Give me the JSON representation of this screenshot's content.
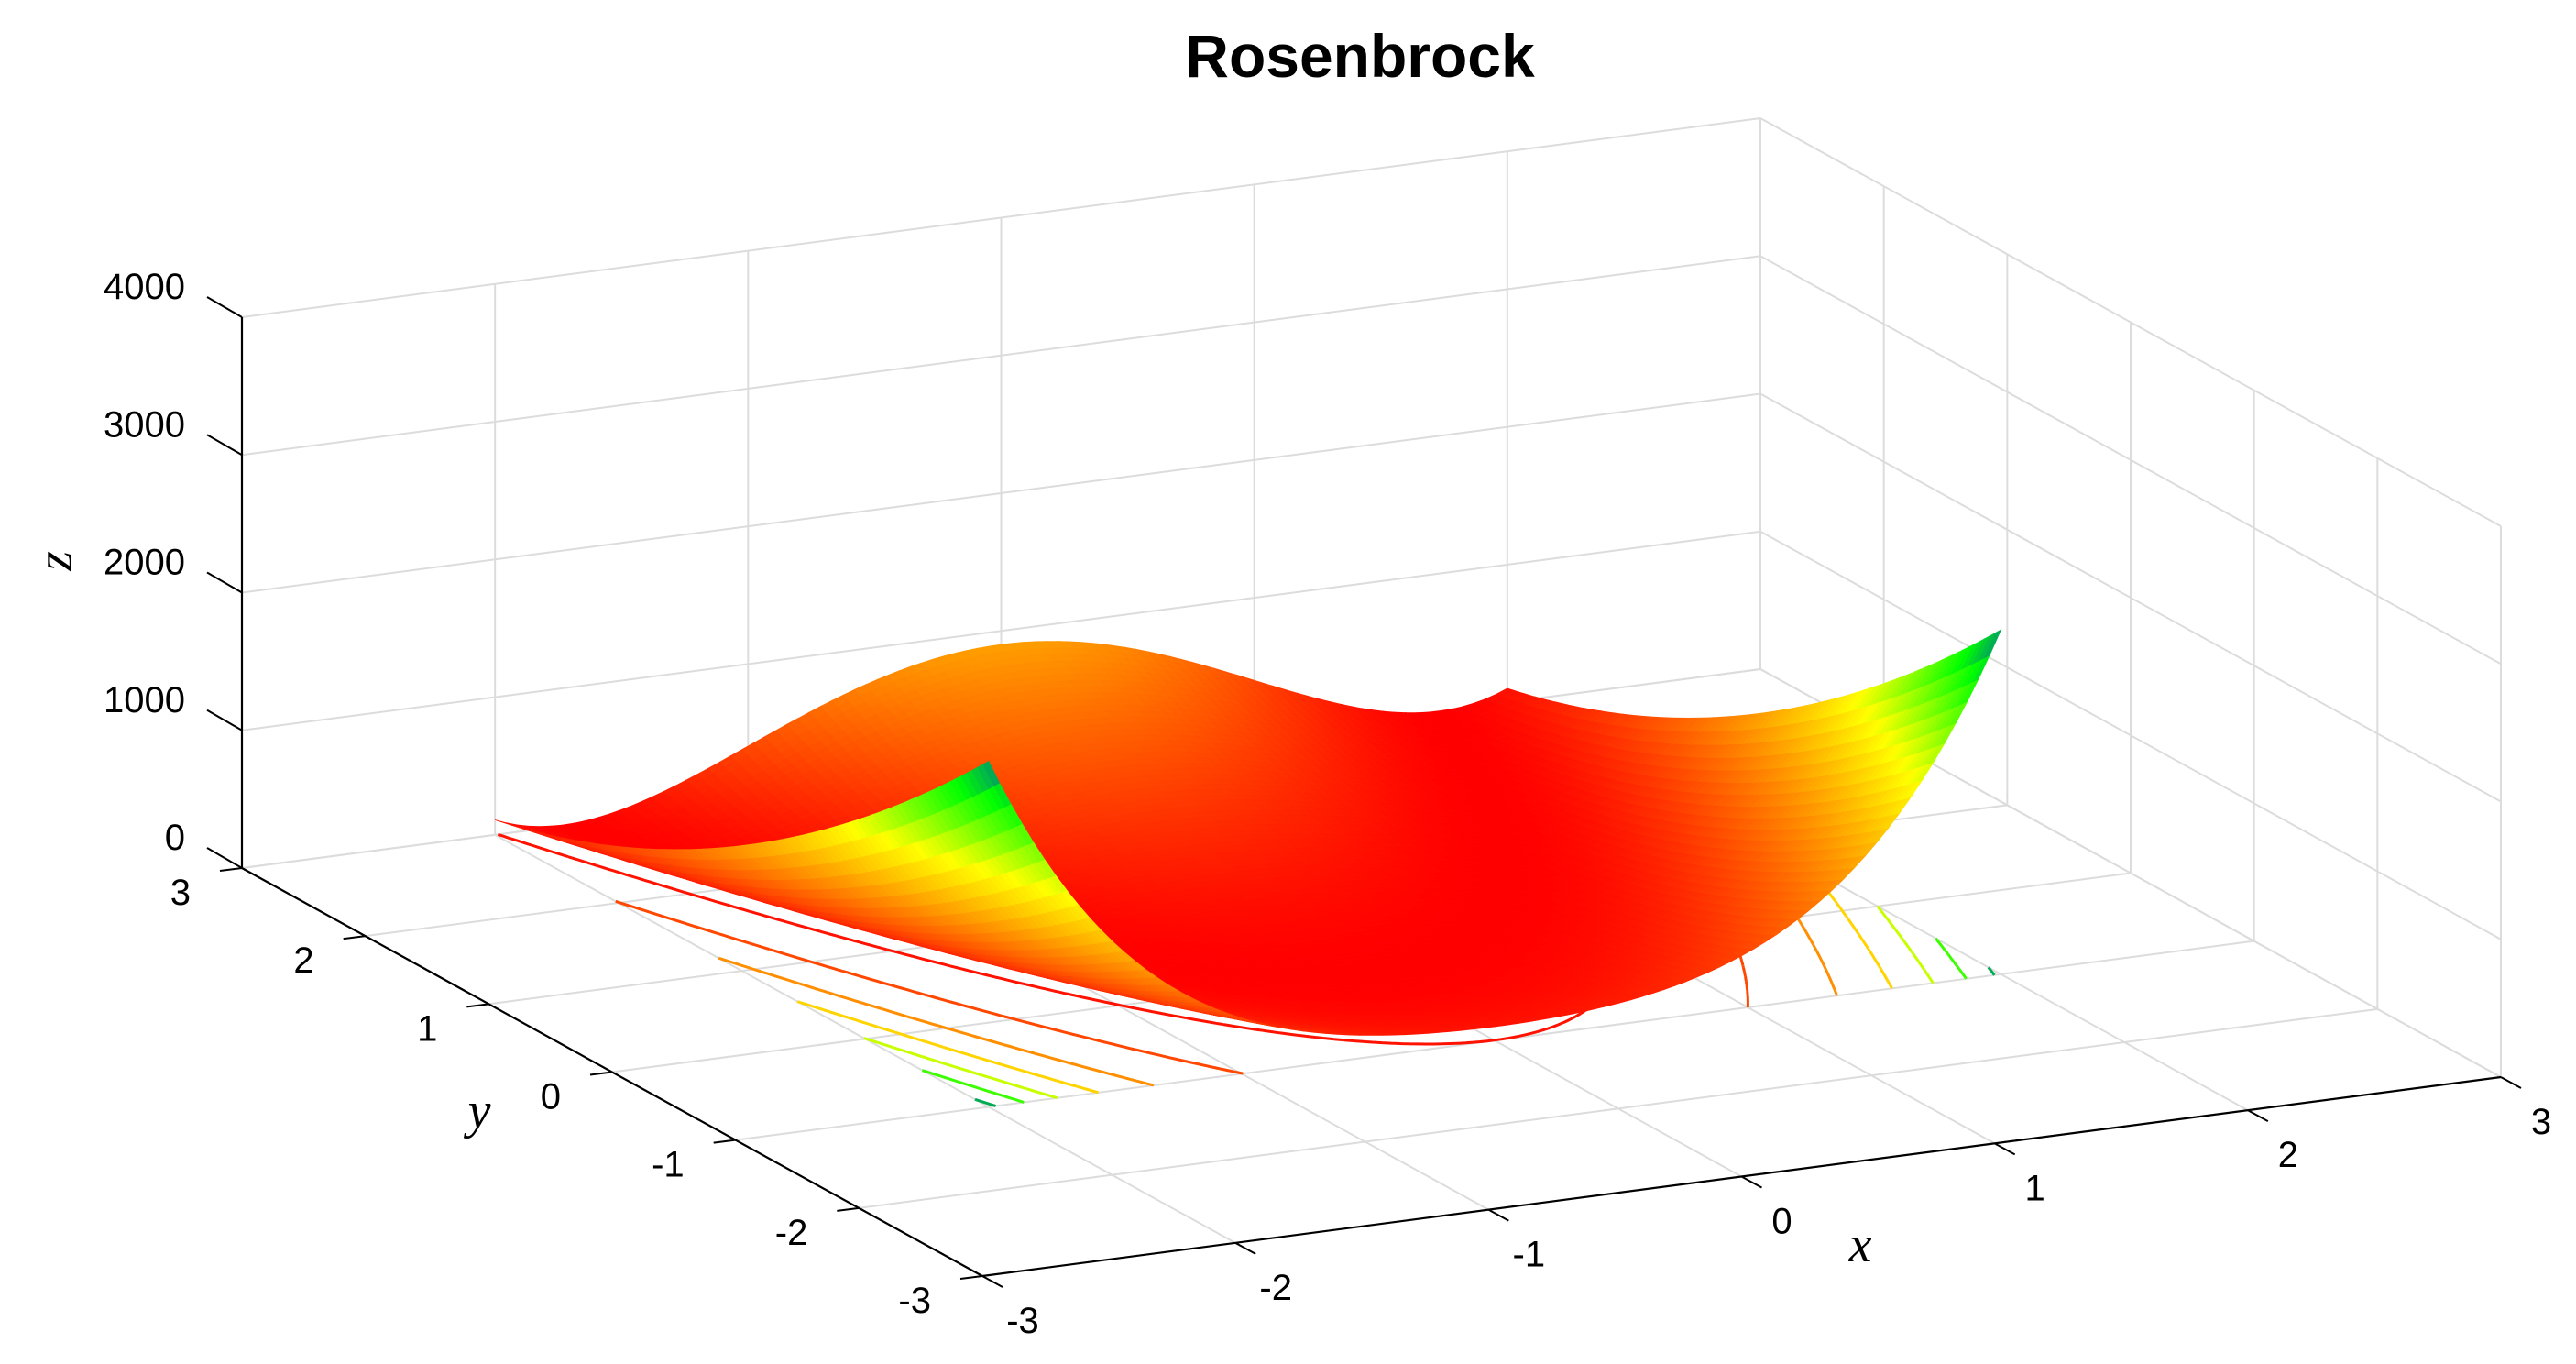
{
  "chart_data": {
    "type": "surface",
    "title": "Rosenbrock",
    "xlabel": "x",
    "ylabel": "y",
    "zlabel": "z",
    "function": "z = (1 - x)^2 + 100 (y - x^2)^2",
    "xlim": [
      -3,
      3
    ],
    "ylim": [
      -3,
      3
    ],
    "zlim": [
      0,
      4000
    ],
    "x_ticks": [
      "-3",
      "-2",
      "-1",
      "0",
      "1",
      "2",
      "3"
    ],
    "y_ticks": [
      "-3",
      "-2",
      "-1",
      "0",
      "1",
      "2",
      "3"
    ],
    "z_ticks": [
      "0",
      "1000",
      "2000",
      "3000",
      "4000"
    ],
    "grid": true,
    "colormap": [
      "#ff0000",
      "#ff8000",
      "#ffff00",
      "#00ff00",
      "#0000ff",
      "#8000ff"
    ],
    "contour_projection": true,
    "surface_x_range": [
      -2,
      2
    ],
    "surface_y_range": [
      -1,
      3
    ]
  }
}
